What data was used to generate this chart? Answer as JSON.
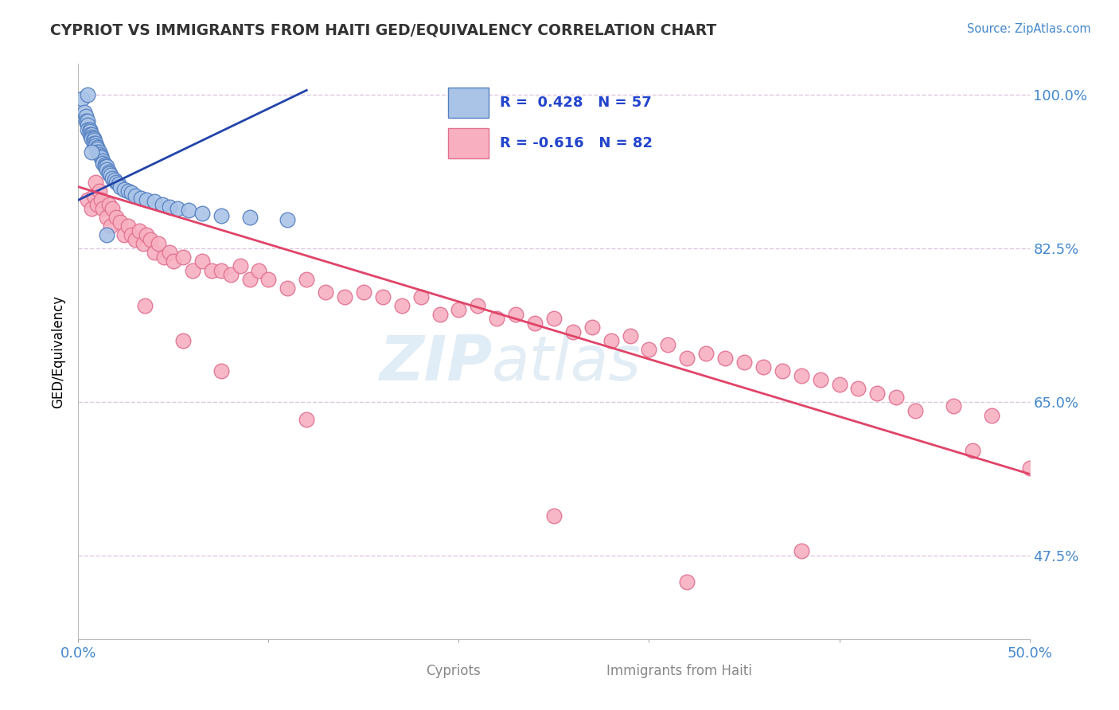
{
  "title": "CYPRIOT VS IMMIGRANTS FROM HAITI GED/EQUIVALENCY CORRELATION CHART",
  "source": "Source: ZipAtlas.com",
  "ylabel": "GED/Equivalency",
  "x_min": 0.0,
  "x_max": 0.5,
  "y_min": 0.38,
  "y_max": 1.035,
  "y_ticks": [
    0.475,
    0.65,
    0.825,
    1.0
  ],
  "y_tick_labels": [
    "47.5%",
    "65.0%",
    "82.5%",
    "100.0%"
  ],
  "grid_color": "#ddc8dd",
  "cypriot_color": "#aac4e8",
  "cypriot_edge_color": "#5580c0",
  "haiti_color": "#f8b0c0",
  "haiti_edge_color": "#e07090",
  "cypriot_line_color": "#2244aa",
  "haiti_line_color": "#e04468",
  "legend_label1": "Cypriots",
  "legend_label2": "Immigrants from Haiti",
  "watermark_zip": "ZIP",
  "watermark_atlas": "atlas",
  "cypriot_R": 0.428,
  "cypriot_N": 57,
  "haiti_R": -0.616,
  "haiti_N": 82,
  "cy_x": [
    0.002,
    0.003,
    0.004,
    0.004,
    0.005,
    0.005,
    0.005,
    0.006,
    0.006,
    0.006,
    0.007,
    0.007,
    0.007,
    0.008,
    0.008,
    0.008,
    0.009,
    0.009,
    0.01,
    0.01,
    0.01,
    0.011,
    0.011,
    0.012,
    0.012,
    0.013,
    0.013,
    0.014,
    0.014,
    0.015,
    0.015,
    0.016,
    0.016,
    0.017,
    0.018,
    0.019,
    0.02,
    0.021,
    0.022,
    0.024,
    0.026,
    0.028,
    0.03,
    0.033,
    0.036,
    0.04,
    0.044,
    0.048,
    0.052,
    0.058,
    0.065,
    0.075,
    0.09,
    0.11,
    0.015,
    0.007,
    0.005
  ],
  "cy_y": [
    0.995,
    0.98,
    0.975,
    0.97,
    0.97,
    0.965,
    0.96,
    0.96,
    0.958,
    0.955,
    0.955,
    0.952,
    0.95,
    0.95,
    0.948,
    0.945,
    0.945,
    0.942,
    0.94,
    0.938,
    0.935,
    0.935,
    0.932,
    0.93,
    0.928,
    0.925,
    0.922,
    0.92,
    0.918,
    0.918,
    0.915,
    0.912,
    0.91,
    0.908,
    0.905,
    0.903,
    0.9,
    0.898,
    0.895,
    0.892,
    0.89,
    0.888,
    0.885,
    0.882,
    0.88,
    0.878,
    0.875,
    0.872,
    0.87,
    0.868,
    0.865,
    0.862,
    0.86,
    0.858,
    0.84,
    0.935,
    1.0
  ],
  "ha_x": [
    0.005,
    0.007,
    0.008,
    0.009,
    0.01,
    0.011,
    0.012,
    0.013,
    0.015,
    0.016,
    0.017,
    0.018,
    0.02,
    0.022,
    0.024,
    0.026,
    0.028,
    0.03,
    0.032,
    0.034,
    0.036,
    0.038,
    0.04,
    0.042,
    0.045,
    0.048,
    0.05,
    0.055,
    0.06,
    0.065,
    0.07,
    0.075,
    0.08,
    0.085,
    0.09,
    0.095,
    0.1,
    0.11,
    0.12,
    0.13,
    0.14,
    0.15,
    0.16,
    0.17,
    0.18,
    0.19,
    0.2,
    0.21,
    0.22,
    0.23,
    0.24,
    0.25,
    0.26,
    0.27,
    0.28,
    0.29,
    0.3,
    0.31,
    0.32,
    0.33,
    0.34,
    0.35,
    0.36,
    0.37,
    0.38,
    0.39,
    0.4,
    0.41,
    0.42,
    0.43,
    0.44,
    0.46,
    0.48,
    0.5,
    0.035,
    0.055,
    0.075,
    0.12,
    0.25,
    0.38,
    0.47,
    0.32
  ],
  "ha_y": [
    0.88,
    0.87,
    0.885,
    0.9,
    0.875,
    0.89,
    0.88,
    0.87,
    0.86,
    0.875,
    0.85,
    0.87,
    0.86,
    0.855,
    0.84,
    0.85,
    0.84,
    0.835,
    0.845,
    0.83,
    0.84,
    0.835,
    0.82,
    0.83,
    0.815,
    0.82,
    0.81,
    0.815,
    0.8,
    0.81,
    0.8,
    0.8,
    0.795,
    0.805,
    0.79,
    0.8,
    0.79,
    0.78,
    0.79,
    0.775,
    0.77,
    0.775,
    0.77,
    0.76,
    0.77,
    0.75,
    0.755,
    0.76,
    0.745,
    0.75,
    0.74,
    0.745,
    0.73,
    0.735,
    0.72,
    0.725,
    0.71,
    0.715,
    0.7,
    0.705,
    0.7,
    0.695,
    0.69,
    0.685,
    0.68,
    0.675,
    0.67,
    0.665,
    0.66,
    0.655,
    0.64,
    0.645,
    0.635,
    0.575,
    0.76,
    0.72,
    0.685,
    0.63,
    0.52,
    0.48,
    0.595,
    0.445
  ],
  "cy_line_x": [
    0.0,
    0.12
  ],
  "cy_line_y": [
    0.88,
    1.005
  ],
  "ha_line_x": [
    0.0,
    0.5
  ],
  "ha_line_y": [
    0.895,
    0.568
  ]
}
